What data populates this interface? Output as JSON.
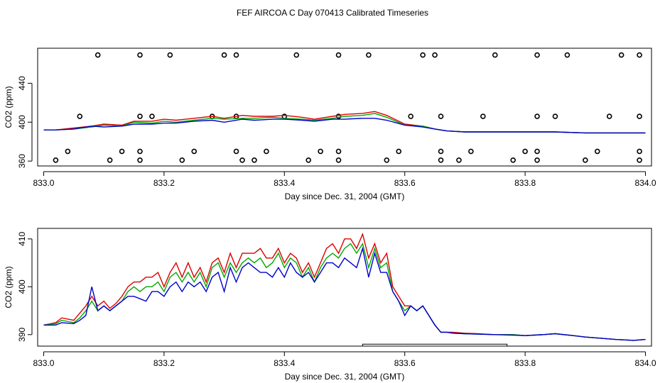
{
  "title": "FEF AIRCOA C  Day 070413  Calibrated Timeseries",
  "colors": {
    "red": "#dd0000",
    "green": "#00aa00",
    "blue": "#0000cc",
    "axis": "#000000"
  },
  "chart_data": [
    {
      "type": "line",
      "panel": "top",
      "xlabel": "Day since Dec. 31, 2004 (GMT)",
      "ylabel": "CO2 (ppm)",
      "xlim": [
        832.99,
        834.01
      ],
      "ylim": [
        355,
        476
      ],
      "xticks": [
        833.0,
        833.2,
        833.4,
        833.6,
        833.8,
        834.0
      ],
      "xtick_labels": [
        "833.0",
        "833.2",
        "833.4",
        "833.6",
        "833.8",
        "834.0"
      ],
      "yticks": [
        360,
        400,
        440
      ],
      "ytick_labels": [
        "360",
        "400",
        "440"
      ],
      "series": [
        {
          "name": "red",
          "color": "#dd0000",
          "x": [
            833.0,
            833.02,
            833.05,
            833.08,
            833.1,
            833.13,
            833.15,
            833.18,
            833.2,
            833.22,
            833.25,
            833.28,
            833.3,
            833.33,
            833.35,
            833.38,
            833.4,
            833.43,
            833.45,
            833.48,
            833.5,
            833.53,
            833.55,
            833.57,
            833.6,
            833.63,
            833.65,
            833.67,
            833.7,
            833.75,
            833.8,
            833.85,
            833.9,
            833.95,
            834.0
          ],
          "y": [
            392,
            392,
            394,
            396,
            398,
            397,
            401,
            401,
            403,
            402,
            404,
            406,
            404,
            407,
            406,
            406,
            407,
            405,
            403,
            406,
            408,
            409,
            411,
            407,
            398,
            396,
            393,
            391,
            390,
            390,
            390,
            390,
            389,
            389,
            389
          ]
        },
        {
          "name": "green",
          "color": "#00aa00",
          "x": [
            833.0,
            833.02,
            833.05,
            833.08,
            833.1,
            833.13,
            833.15,
            833.18,
            833.2,
            833.22,
            833.25,
            833.28,
            833.3,
            833.33,
            833.35,
            833.38,
            833.4,
            833.43,
            833.45,
            833.48,
            833.5,
            833.53,
            833.55,
            833.57,
            833.6,
            833.63,
            833.65,
            833.67,
            833.7,
            833.75,
            833.8,
            833.85,
            833.9,
            833.95,
            834.0
          ],
          "y": [
            392,
            392,
            393,
            395,
            397,
            396,
            400,
            399,
            401,
            400,
            402,
            404,
            403,
            404,
            404,
            405,
            404,
            403,
            402,
            404,
            406,
            407,
            409,
            405,
            397,
            396,
            393,
            391,
            390,
            390,
            390,
            390,
            389,
            389,
            389
          ]
        },
        {
          "name": "blue",
          "color": "#0000cc",
          "x": [
            833.0,
            833.02,
            833.05,
            833.08,
            833.1,
            833.13,
            833.15,
            833.18,
            833.2,
            833.22,
            833.25,
            833.28,
            833.3,
            833.33,
            833.35,
            833.38,
            833.4,
            833.43,
            833.45,
            833.48,
            833.5,
            833.53,
            833.55,
            833.57,
            833.6,
            833.63,
            833.65,
            833.67,
            833.7,
            833.75,
            833.8,
            833.85,
            833.9,
            833.95,
            834.0
          ],
          "y": [
            392,
            392,
            393,
            396,
            395,
            396,
            398,
            398,
            399,
            399,
            401,
            402,
            400,
            403,
            402,
            403,
            403,
            402,
            401,
            403,
            403,
            404,
            404,
            402,
            397,
            395,
            393,
            391,
            390,
            390,
            390,
            390,
            389,
            389,
            389
          ]
        }
      ],
      "flags": {
        "name": "circle markers",
        "color": "#000000",
        "x": [
          833.09,
          833.16,
          833.21,
          833.3,
          833.32,
          833.42,
          833.49,
          833.54,
          833.63,
          833.65,
          833.75,
          833.82,
          833.87,
          833.96,
          833.99,
          833.06,
          833.16,
          833.18,
          833.28,
          833.32,
          833.4,
          833.49,
          833.61,
          833.66,
          833.73,
          833.82,
          833.85,
          833.94,
          833.99,
          833.04,
          833.13,
          833.16,
          833.25,
          833.32,
          833.37,
          833.46,
          833.49,
          833.59,
          833.66,
          833.71,
          833.8,
          833.82,
          833.92,
          833.99,
          833.02,
          833.11,
          833.16,
          833.23,
          833.33,
          833.35,
          833.44,
          833.49,
          833.57,
          833.66,
          833.69,
          833.78,
          833.82,
          833.9,
          833.99
        ],
        "y": [
          469,
          469,
          469,
          469,
          469,
          469,
          469,
          469,
          469,
          469,
          469,
          469,
          469,
          469,
          469,
          406,
          406,
          406,
          406,
          406,
          406,
          406,
          406,
          406,
          406,
          406,
          406,
          406,
          406,
          370,
          370,
          370,
          370,
          370,
          370,
          370,
          370,
          370,
          370,
          370,
          370,
          370,
          370,
          370,
          361,
          361,
          361,
          361,
          361,
          361,
          361,
          361,
          361,
          361,
          361,
          361,
          361,
          361,
          361
        ]
      }
    },
    {
      "type": "line",
      "panel": "bottom",
      "xlabel": "Day since Dec. 31, 2004 (GMT)",
      "ylabel": "CO2 (ppm)",
      "xlim": [
        832.99,
        834.01
      ],
      "ylim": [
        387.6,
        412.2
      ],
      "xticks": [
        833.0,
        833.2,
        833.4,
        833.6,
        833.8,
        834.0
      ],
      "xtick_labels": [
        "833.0",
        "833.2",
        "833.4",
        "833.6",
        "833.8",
        "834.0"
      ],
      "yticks": [
        390,
        400,
        410
      ],
      "ytick_labels": [
        "390",
        "400",
        "410"
      ],
      "series": [
        {
          "name": "red",
          "color": "#dd0000",
          "x": [
            833.0,
            833.02,
            833.03,
            833.05,
            833.06,
            833.07,
            833.08,
            833.09,
            833.1,
            833.11,
            833.12,
            833.13,
            833.14,
            833.15,
            833.16,
            833.17,
            833.18,
            833.19,
            833.2,
            833.21,
            833.22,
            833.23,
            833.24,
            833.25,
            833.26,
            833.27,
            833.28,
            833.29,
            833.3,
            833.31,
            833.32,
            833.33,
            833.34,
            833.35,
            833.36,
            833.37,
            833.38,
            833.39,
            833.4,
            833.41,
            833.42,
            833.43,
            833.44,
            833.45,
            833.46,
            833.47,
            833.48,
            833.49,
            833.5,
            833.51,
            833.52,
            833.53,
            833.54,
            833.55,
            833.56,
            833.57,
            833.58,
            833.59,
            833.6,
            833.61,
            833.62,
            833.63,
            833.64,
            833.65,
            833.66,
            833.67,
            833.68,
            833.7,
            833.72,
            833.75,
            833.78,
            833.8,
            833.83,
            833.85,
            833.88,
            833.9,
            833.93,
            833.95,
            833.98,
            834.0
          ],
          "y": [
            392,
            392.5,
            393.5,
            393,
            394.5,
            396,
            398,
            396,
            397,
            395.5,
            396.5,
            398,
            400,
            401,
            401,
            402,
            402,
            403,
            400,
            403,
            405,
            402,
            405,
            402,
            404,
            401,
            405,
            406,
            403,
            407,
            404,
            407,
            407,
            407,
            408,
            406,
            406,
            408,
            405,
            407,
            406,
            403,
            405,
            402,
            405,
            408,
            409,
            407,
            410,
            410,
            408,
            411,
            406,
            409,
            405,
            407,
            400,
            398,
            396,
            396,
            395,
            396,
            394,
            392,
            390.5,
            390.5,
            390.5,
            390.3,
            390.2,
            390,
            390,
            389.8,
            390,
            390.2,
            389.8,
            389.5,
            389.2,
            389,
            388.8,
            389
          ]
        },
        {
          "name": "green",
          "color": "#00aa00",
          "x": [
            833.0,
            833.02,
            833.03,
            833.05,
            833.06,
            833.07,
            833.08,
            833.09,
            833.1,
            833.11,
            833.12,
            833.13,
            833.14,
            833.15,
            833.16,
            833.17,
            833.18,
            833.19,
            833.2,
            833.21,
            833.22,
            833.23,
            833.24,
            833.25,
            833.26,
            833.27,
            833.28,
            833.29,
            833.3,
            833.31,
            833.32,
            833.33,
            833.34,
            833.35,
            833.36,
            833.37,
            833.38,
            833.39,
            833.4,
            833.41,
            833.42,
            833.43,
            833.44,
            833.45,
            833.46,
            833.47,
            833.48,
            833.49,
            833.5,
            833.51,
            833.52,
            833.53,
            833.54,
            833.55,
            833.56,
            833.57,
            833.58,
            833.59,
            833.6,
            833.61,
            833.62,
            833.63,
            833.64,
            833.65,
            833.66,
            833.67,
            833.68,
            833.7,
            833.72,
            833.75,
            833.78,
            833.8,
            833.83,
            833.85,
            833.88,
            833.9,
            833.93,
            833.95,
            833.98,
            834.0
          ],
          "y": [
            392,
            392.3,
            393,
            392.5,
            393.5,
            395,
            397,
            395,
            396,
            395,
            396,
            397,
            399,
            400,
            399,
            400,
            400,
            401,
            399,
            402,
            403,
            401,
            403,
            401,
            403,
            400,
            404,
            405,
            402,
            405,
            403,
            405,
            406,
            405,
            406,
            404,
            405,
            407,
            404,
            406,
            405,
            402,
            404,
            401,
            404,
            406,
            407,
            406,
            408,
            409,
            407,
            409,
            404,
            408,
            404,
            405,
            399,
            397,
            395,
            396,
            395,
            396,
            394,
            392,
            390.5,
            390.5,
            390.3,
            390.2,
            390.1,
            390,
            390,
            389.8,
            390,
            390.2,
            389.8,
            389.5,
            389.2,
            389,
            388.8,
            389
          ]
        },
        {
          "name": "blue",
          "color": "#0000cc",
          "x": [
            833.0,
            833.02,
            833.03,
            833.05,
            833.06,
            833.07,
            833.08,
            833.09,
            833.1,
            833.11,
            833.12,
            833.13,
            833.14,
            833.15,
            833.16,
            833.17,
            833.18,
            833.19,
            833.2,
            833.21,
            833.22,
            833.23,
            833.24,
            833.25,
            833.26,
            833.27,
            833.28,
            833.29,
            833.3,
            833.31,
            833.32,
            833.33,
            833.34,
            833.35,
            833.36,
            833.37,
            833.38,
            833.39,
            833.4,
            833.41,
            833.42,
            833.43,
            833.44,
            833.45,
            833.46,
            833.47,
            833.48,
            833.49,
            833.5,
            833.51,
            833.52,
            833.53,
            833.54,
            833.55,
            833.56,
            833.57,
            833.58,
            833.59,
            833.6,
            833.61,
            833.62,
            833.63,
            833.64,
            833.65,
            833.66,
            833.67,
            833.68,
            833.7,
            833.72,
            833.75,
            833.78,
            833.8,
            833.83,
            833.85,
            833.88,
            833.9,
            833.93,
            833.95,
            833.98,
            834.0
          ],
          "y": [
            392,
            392,
            392.5,
            392.3,
            393,
            394,
            400,
            395,
            396,
            395,
            396,
            397,
            398,
            398,
            397.5,
            397,
            399,
            399,
            398,
            400,
            401,
            399,
            401,
            400,
            401,
            399,
            402,
            403,
            399,
            404,
            401,
            404,
            405,
            404,
            403,
            403,
            402,
            404,
            402,
            405,
            403,
            402,
            403,
            401,
            403,
            405,
            405,
            404,
            406,
            405,
            404,
            408,
            402,
            407,
            403,
            403,
            399,
            397,
            394,
            396,
            395,
            396,
            394,
            392,
            390.5,
            390.5,
            390.3,
            390.2,
            390.1,
            390,
            389.9,
            389.8,
            390,
            390.2,
            389.8,
            389.5,
            389.2,
            389,
            388.8,
            389
          ]
        }
      ],
      "annotations": [
        {
          "type": "bracket",
          "x0": 833.53,
          "x1": 833.77,
          "y": 388.0
        }
      ]
    }
  ]
}
